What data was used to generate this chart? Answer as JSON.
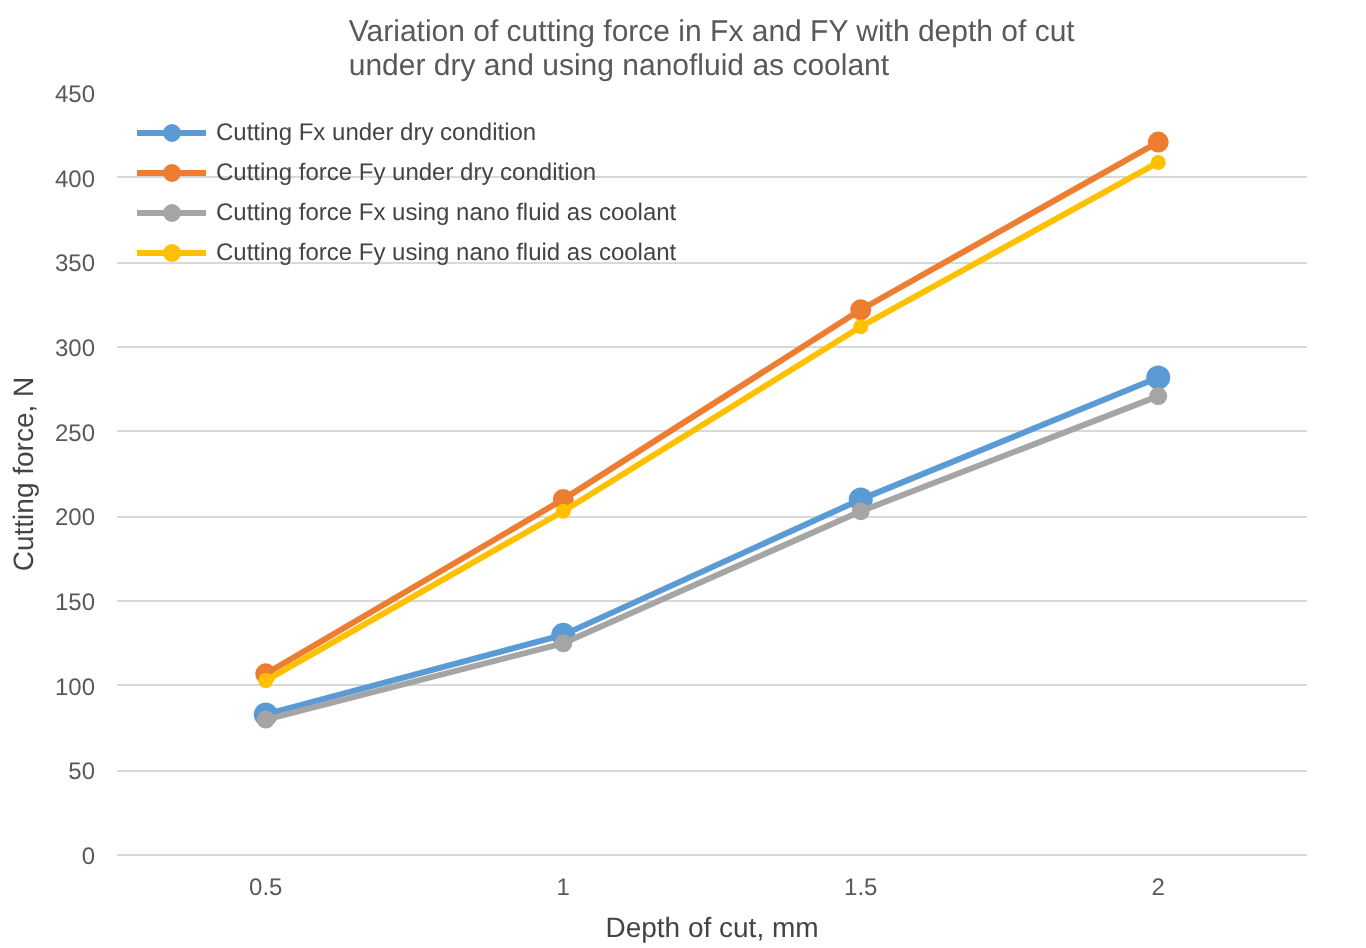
{
  "chart_data": {
    "type": "line",
    "title": "Variation of cutting force in Fx and FY with depth of cut under dry and using nanofluid as coolant",
    "xlabel": "Depth of cut, mm",
    "ylabel": "Cutting force, N",
    "categories": [
      "0.5",
      "1",
      "1.5",
      "2"
    ],
    "ylim": [
      0,
      450
    ],
    "yticks": [
      0,
      50,
      100,
      150,
      200,
      250,
      300,
      350,
      400,
      450
    ],
    "grid": "y",
    "legend": "top left",
    "marker": "circle",
    "series": [
      {
        "name": "Cutting Fx under dry condition",
        "color": "#5b9bd5",
        "values": [
          83,
          130,
          210,
          282
        ]
      },
      {
        "name": "Cutting force Fy under dry condition",
        "color": "#ed7d31",
        "values": [
          107,
          210,
          322,
          421
        ]
      },
      {
        "name": "Cutting force Fx using nano fluid as coolant",
        "color": "#a5a5a5",
        "values": [
          80,
          125,
          203,
          271
        ]
      },
      {
        "name": "Cutting force Fy using nano fluid as coolant",
        "color": "#ffc000",
        "values": [
          103,
          203,
          312,
          409
        ]
      }
    ]
  }
}
